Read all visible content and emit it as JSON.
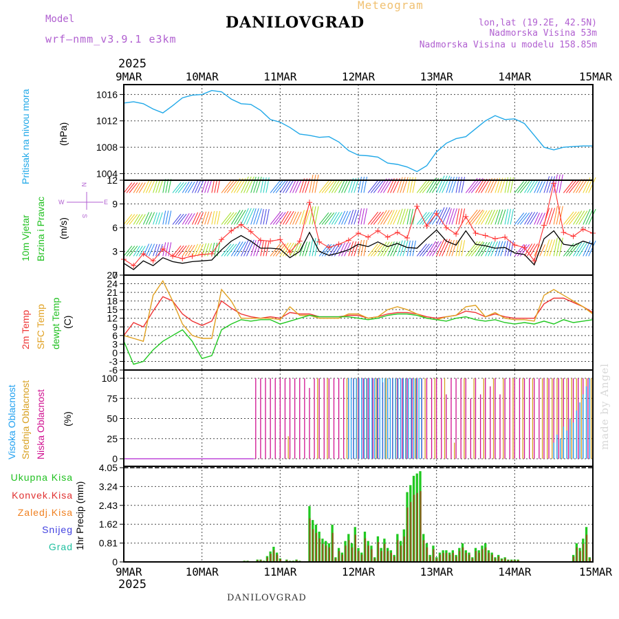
{
  "header": {
    "model_label": "Model",
    "model_name": "wrf–nmm_v3.9.1 e3km",
    "title": "DANILOVGRAD",
    "meteogram": "Meteogram",
    "lonlat": "lon,lat (19.2E, 42.5N)",
    "altitude": "Nadmorska Visina 53m",
    "model_altitude": "Nadmorska Visina u modelu 158.85m",
    "year": "2025"
  },
  "footer": {
    "station": "DANILOVGRAD",
    "year": "2025",
    "watermark": "made by Angel"
  },
  "colors": {
    "pressure": "#20a8e8",
    "wind_black": "#000000",
    "wind_max": "#ff3030",
    "t2m": "#ee3333",
    "tsfc": "#e0a020",
    "dew": "#20c820",
    "high": "#20a0f0",
    "mid": "#d8a020",
    "low": "#d01090",
    "total": "#20c820",
    "conv": "#e03030",
    "frozen": "#f08020",
    "snow": "#4040e0",
    "hail": "#20c0a0"
  },
  "chart_data": [
    {
      "id": "pressure",
      "type": "line",
      "title": "Pritisak na nivou mora",
      "ylabel": "(hPa)",
      "ylim": [
        1003,
        1017.5
      ],
      "yticks": [
        "1004",
        "1008",
        "1012",
        "1016"
      ],
      "x_hours": [
        0,
        3,
        6,
        9,
        12,
        15,
        18,
        21,
        24,
        27,
        30,
        33,
        36,
        39,
        42,
        45,
        48,
        51,
        54,
        57,
        60,
        63,
        66,
        69,
        72,
        75,
        78,
        81,
        84,
        87,
        90,
        93,
        96,
        99,
        102,
        105,
        108,
        111,
        114,
        117,
        120,
        123,
        126,
        129,
        132,
        135,
        138,
        141,
        144
      ],
      "values": [
        1014.7,
        1014.9,
        1014.6,
        1013.8,
        1013.2,
        1014.3,
        1015.5,
        1015.9,
        1016.0,
        1016.6,
        1016.4,
        1015.3,
        1014.6,
        1014.5,
        1013.6,
        1012.2,
        1011.8,
        1011.0,
        1010.0,
        1009.8,
        1009.5,
        1009.6,
        1008.8,
        1007.5,
        1006.8,
        1006.7,
        1006.5,
        1005.6,
        1005.4,
        1005.0,
        1004.3,
        1005.2,
        1007.3,
        1008.6,
        1009.3,
        1009.6,
        1010.8,
        1012.0,
        1012.8,
        1012.2,
        1012.3,
        1011.6,
        1009.8,
        1008.0,
        1007.6,
        1008.0,
        1008.1,
        1008.2,
        1008.2
      ]
    },
    {
      "id": "wind",
      "type": "line",
      "title": "10m Vjetar Brzina i Pravac",
      "ylabel": "(m/s)",
      "ylim": [
        0,
        12
      ],
      "yticks": [
        "0",
        "3",
        "6",
        "9",
        "12"
      ],
      "compass": [
        "N",
        "E",
        "W",
        "S"
      ],
      "x_hours": [
        0,
        3,
        6,
        9,
        12,
        15,
        18,
        21,
        24,
        27,
        30,
        33,
        36,
        39,
        42,
        45,
        48,
        51,
        54,
        57,
        60,
        63,
        66,
        69,
        72,
        75,
        78,
        81,
        84,
        87,
        90,
        93,
        96,
        99,
        102,
        105,
        108,
        111,
        114,
        117,
        120,
        123,
        126,
        129,
        132,
        135,
        138,
        141,
        144
      ],
      "speed": [
        1.5,
        0.7,
        1.8,
        1.2,
        2.2,
        1.7,
        1.5,
        1.7,
        1.8,
        1.9,
        3.2,
        4.3,
        5.0,
        4.3,
        3.4,
        3.4,
        3.3,
        2.2,
        3.0,
        5.4,
        3.0,
        2.5,
        2.8,
        3.2,
        3.9,
        3.6,
        4.2,
        3.6,
        4.0,
        3.5,
        3.4,
        4.6,
        5.7,
        4.3,
        3.8,
        5.6,
        3.9,
        3.7,
        3.4,
        3.5,
        2.8,
        2.6,
        1.3,
        4.6,
        5.6,
        3.9,
        3.7,
        4.3,
        3.9
      ],
      "gust": [
        2.0,
        1.2,
        2.7,
        1.8,
        3.3,
        2.4,
        2.1,
        2.4,
        2.6,
        2.7,
        4.5,
        5.6,
        6.4,
        5.5,
        4.4,
        4.3,
        4.5,
        2.9,
        4.3,
        9.2,
        4.2,
        3.5,
        3.9,
        4.4,
        5.3,
        4.8,
        5.6,
        4.8,
        5.4,
        4.7,
        8.7,
        6.2,
        7.8,
        6.0,
        5.2,
        7.4,
        5.3,
        5.0,
        4.6,
        4.8,
        3.8,
        3.5,
        1.8,
        6.3,
        11.6,
        5.4,
        4.9,
        5.8,
        5.3
      ]
    },
    {
      "id": "temperature",
      "type": "line",
      "title": "2m Temp / SFC Temp / dewpt Temp",
      "ylabel": "(C)",
      "ylim": [
        -6,
        27
      ],
      "yticks": [
        "-6",
        "-3",
        "0",
        "3",
        "6",
        "9",
        "12",
        "15",
        "18",
        "21",
        "24",
        "27"
      ],
      "x_hours": [
        0,
        3,
        6,
        9,
        12,
        15,
        18,
        21,
        24,
        27,
        30,
        33,
        36,
        39,
        42,
        45,
        48,
        51,
        54,
        57,
        60,
        63,
        66,
        69,
        72,
        75,
        78,
        81,
        84,
        87,
        90,
        93,
        96,
        99,
        102,
        105,
        108,
        111,
        114,
        117,
        120,
        123,
        126,
        129,
        132,
        135,
        138,
        141,
        144
      ],
      "series": [
        {
          "name": "2m Temp",
          "values": [
            6.0,
            10.5,
            9.0,
            14.5,
            19.5,
            18.0,
            13.5,
            11.0,
            9.5,
            11.0,
            18.0,
            15.5,
            13.5,
            12.5,
            12.0,
            12.5,
            12.0,
            14.0,
            13.5,
            13.5,
            12.5,
            12.5,
            12.5,
            13.0,
            13.0,
            12.0,
            12.5,
            13.5,
            14.0,
            14.0,
            13.5,
            12.5,
            12.0,
            12.5,
            13.0,
            14.5,
            14.0,
            12.5,
            13.5,
            12.5,
            12.0,
            12.0,
            12.0,
            17.0,
            19.0,
            19.0,
            17.5,
            16.0,
            14.0
          ]
        },
        {
          "name": "SFC Temp",
          "values": [
            6.0,
            5.0,
            4.0,
            20.0,
            25.0,
            18.0,
            10.0,
            6.0,
            5.0,
            5.0,
            22.0,
            18.0,
            12.0,
            12.0,
            12.0,
            12.0,
            11.5,
            16.0,
            13.0,
            13.0,
            12.0,
            12.0,
            12.0,
            13.5,
            13.5,
            12.0,
            12.5,
            15.0,
            16.0,
            15.0,
            13.5,
            12.0,
            11.5,
            12.5,
            13.0,
            16.0,
            16.5,
            12.5,
            14.0,
            12.0,
            11.5,
            11.5,
            11.0,
            20.0,
            22.0,
            20.0,
            18.0,
            16.0,
            13.5
          ]
        },
        {
          "name": "dewpt Temp",
          "values": [
            4.0,
            -4.0,
            -3.0,
            1.0,
            4.0,
            6.0,
            8.0,
            4.0,
            -2.0,
            -1.0,
            8.0,
            10.0,
            11.5,
            11.0,
            11.5,
            11.5,
            10.0,
            11.0,
            12.0,
            13.0,
            12.5,
            12.5,
            12.5,
            12.5,
            12.0,
            11.5,
            12.0,
            13.0,
            13.5,
            13.5,
            13.0,
            12.0,
            11.5,
            11.0,
            12.0,
            12.5,
            11.5,
            11.0,
            11.5,
            10.5,
            10.0,
            10.5,
            10.0,
            11.0,
            10.0,
            11.5,
            10.5,
            11.0,
            11.5
          ]
        }
      ]
    },
    {
      "id": "clouds",
      "type": "bar",
      "title": "Visoka Oblacnost / Srednja Oblacnost / Niska Oblacnost",
      "ylabel": "(%)",
      "ylim": [
        0,
        100
      ],
      "yticks": [
        "0",
        "25",
        "50",
        "75",
        "100"
      ],
      "series": [
        {
          "name": "Niska",
          "x_hours": [
            40.5,
            42.0,
            43.5,
            45.0,
            46.5,
            48.0,
            49.5,
            51.0,
            52.5,
            54.0,
            55.5,
            57.0,
            58.5,
            60.0,
            61.5,
            63.0,
            64.5,
            66.0,
            67.5,
            69.0,
            70.5,
            72.0,
            73.5,
            75.0,
            76.5,
            78.0,
            79.5,
            81.0,
            82.5,
            84.0,
            85.5,
            87.0,
            88.5,
            90.0,
            91.5,
            93.0,
            94.5,
            96.0,
            97.5,
            99.0,
            100.5,
            102.0,
            103.5,
            105.0,
            106.5,
            108.0,
            109.5,
            111.0,
            112.5,
            114.0,
            115.5,
            117.0,
            118.5,
            120.0,
            121.5,
            123.0,
            124.5,
            126.0,
            127.5,
            129.0,
            130.5,
            132.0,
            133.5,
            135.0,
            136.5,
            138.0,
            139.5,
            141.0,
            142.5
          ],
          "values": [
            100,
            100,
            100,
            100,
            100,
            100,
            100,
            100,
            100,
            100,
            100,
            88,
            100,
            100,
            100,
            100,
            100,
            100,
            100,
            100,
            100,
            100,
            100,
            100,
            100,
            100,
            95,
            100,
            100,
            100,
            100,
            100,
            100,
            100,
            100,
            100,
            100,
            100,
            100,
            80,
            100,
            100,
            100,
            100,
            75,
            100,
            80,
            100,
            90,
            100,
            80,
            100,
            100,
            100,
            100,
            100,
            100,
            100,
            100,
            100,
            100,
            100,
            100,
            100,
            100,
            100,
            100,
            100,
            100
          ]
        },
        {
          "name": "Srednja",
          "x_hours": [
            50.5,
            59.5,
            62.5,
            68.5,
            71.5,
            74.5,
            77.5,
            80.5,
            83.5,
            86.5,
            89.5,
            92.5,
            95.5,
            98.5,
            101.5,
            104.5,
            107.5,
            110.5,
            113.5,
            116.5,
            119.5,
            122.5,
            125.5,
            128.5,
            130.0,
            131.5,
            133.0,
            134.5,
            136.0,
            137.5,
            139.0,
            140.5,
            142.0,
            143.5
          ],
          "values": [
            28,
            100,
            100,
            100,
            100,
            100,
            100,
            100,
            100,
            100,
            100,
            100,
            100,
            100,
            20,
            100,
            100,
            100,
            100,
            100,
            100,
            100,
            100,
            100,
            100,
            100,
            100,
            100,
            100,
            100,
            100,
            100,
            100,
            100
          ]
        },
        {
          "name": "Visoka",
          "x_hours": [
            69.0,
            69.8,
            70.6,
            71.4,
            72.2,
            73.0,
            73.8,
            74.6,
            75.4,
            76.2,
            77.0,
            77.8,
            78.6,
            79.4,
            80.2,
            81.0,
            81.8,
            82.6,
            83.4,
            84.2,
            85.0,
            85.8,
            86.6,
            87.4,
            88.2,
            89.0,
            89.8,
            90.6,
            91.4,
            132.0,
            133.0,
            134.0,
            135.0,
            136.0,
            137.0,
            138.0,
            139.0,
            140.0,
            141.0,
            142.0,
            143.0
          ],
          "values": [
            100,
            100,
            100,
            100,
            100,
            100,
            100,
            100,
            100,
            100,
            100,
            100,
            100,
            100,
            100,
            100,
            100,
            100,
            100,
            100,
            100,
            100,
            100,
            100,
            100,
            100,
            100,
            100,
            100,
            20,
            30,
            25,
            40,
            35,
            50,
            45,
            60,
            70,
            80,
            90,
            100
          ]
        }
      ]
    },
    {
      "id": "precip",
      "type": "bar",
      "title": "1hr Precip",
      "ylabel": "1hr Precip (mm)",
      "ylim": [
        0,
        4.05
      ],
      "yticks": [
        "0",
        "0.81",
        "1.62",
        "2.43",
        "3.24",
        "4.05"
      ],
      "legend": [
        "Ukupna Kisa",
        "Konvek.Kisa",
        "Zaledj.Kisa",
        "Snijeg",
        "Grad"
      ],
      "x_hours": [
        37.0,
        38.0,
        41.0,
        42.0,
        43.0,
        44.0,
        45.0,
        46.0,
        47.0,
        48.0,
        50.0,
        51.0,
        52.0,
        53.0,
        54.0,
        57.0,
        58.0,
        59.0,
        60.0,
        61.0,
        62.0,
        63.0,
        64.0,
        65.0,
        66.0,
        67.0,
        68.0,
        69.0,
        70.0,
        71.0,
        72.0,
        73.0,
        74.0,
        75.0,
        76.0,
        77.0,
        78.0,
        79.0,
        80.0,
        81.0,
        82.0,
        83.0,
        84.0,
        85.0,
        86.0,
        87.0,
        88.0,
        89.0,
        90.0,
        91.0,
        92.0,
        93.0,
        94.0,
        95.0,
        96.0,
        97.0,
        98.0,
        99.0,
        100.0,
        101.0,
        102.0,
        103.0,
        104.0,
        105.0,
        106.0,
        107.0,
        108.0,
        109.0,
        110.0,
        111.0,
        112.0,
        113.0,
        114.0,
        115.0,
        116.0,
        117.0,
        118.0,
        119.0,
        120.0,
        121.0,
        138.0,
        139.0,
        140.0,
        141.0,
        142.0,
        143.0
      ],
      "values": [
        0.05,
        0.05,
        0.1,
        0.1,
        0.05,
        0.25,
        0.45,
        0.65,
        0.4,
        0.15,
        0.1,
        0.05,
        0.05,
        0.1,
        0.05,
        2.4,
        1.8,
        1.6,
        1.3,
        1.0,
        0.9,
        0.8,
        1.6,
        0.2,
        0.6,
        0.4,
        0.9,
        1.2,
        0.8,
        1.5,
        0.6,
        0.4,
        1.3,
        0.9,
        0.7,
        0.2,
        1.1,
        0.6,
        1.0,
        0.6,
        0.5,
        0.3,
        1.2,
        0.9,
        1.4,
        3.0,
        3.3,
        3.7,
        3.8,
        3.9,
        1.2,
        0.8,
        0.3,
        0.7,
        0.2,
        0.4,
        0.5,
        0.5,
        0.4,
        0.5,
        0.3,
        0.6,
        0.8,
        0.5,
        0.4,
        0.2,
        0.6,
        0.5,
        0.7,
        0.8,
        0.5,
        0.4,
        0.2,
        0.3,
        0.15,
        0.2,
        0.1,
        0.1,
        0.1,
        0.1,
        0.3,
        0.8,
        0.6,
        1.0,
        1.5,
        0.2
      ]
    }
  ],
  "xaxis": {
    "ticks": [
      "9MAR",
      "10MAR",
      "11MAR",
      "12MAR",
      "13MAR",
      "14MAR",
      "15MAR"
    ],
    "hours": [
      0,
      24,
      48,
      72,
      96,
      120,
      144
    ],
    "xlim": [
      0,
      144
    ]
  }
}
